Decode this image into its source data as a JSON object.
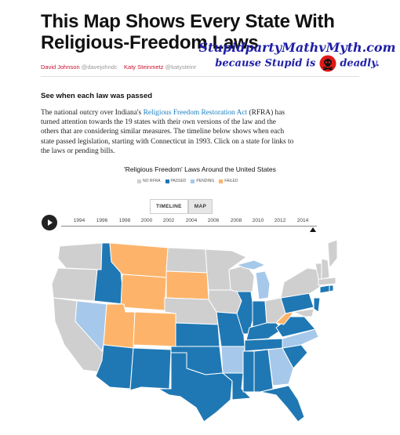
{
  "article": {
    "title": "This Map Shows Every State With Religious-Freedom Laws",
    "author1": "David Johnson",
    "handle1": "@davejohndc",
    "author2": "Katy Steinmetz",
    "handle2": "@katysteinr"
  },
  "watermark": {
    "line1": "StupidpartyMathvMyth.com",
    "line2a": "because Stupid is",
    "line2b": "deadly."
  },
  "section": {
    "heading": "See when each law was passed",
    "body_pre": "The national outcry over Indiana's ",
    "body_link": "Religious Freedom Restoration Act",
    "body_post": " (RFRA) has turned attention towards the 19 states with their own versions of the law and the others that are considering similar measures. The timeline below shows when each state passed legislation, starting with Connecticut in 1993. Click on a state for links to the laws or pending bills."
  },
  "chart": {
    "title": "'Religious Freedom' Laws Around the United States",
    "legend": [
      {
        "label": "NO RFRA",
        "color": "#cfcfcf"
      },
      {
        "label": "PASSED",
        "color": "#1f78b4"
      },
      {
        "label": "PENDING",
        "color": "#a6c8ea"
      },
      {
        "label": "FAILED",
        "color": "#fdb46a"
      }
    ],
    "toggle": {
      "timeline": "TIMELINE",
      "map": "MAP",
      "active": "MAP"
    },
    "years": [
      "1994",
      "1996",
      "1998",
      "2000",
      "2002",
      "2004",
      "2006",
      "2008",
      "2010",
      "2012",
      "2014"
    ],
    "current_year": "2015"
  },
  "colors": {
    "none": "#cfcfcf",
    "passed": "#1f78b4",
    "pending": "#a6c8ea",
    "failed": "#fdb46a",
    "link": "#1d7fc3",
    "author": "#c8102e"
  }
}
